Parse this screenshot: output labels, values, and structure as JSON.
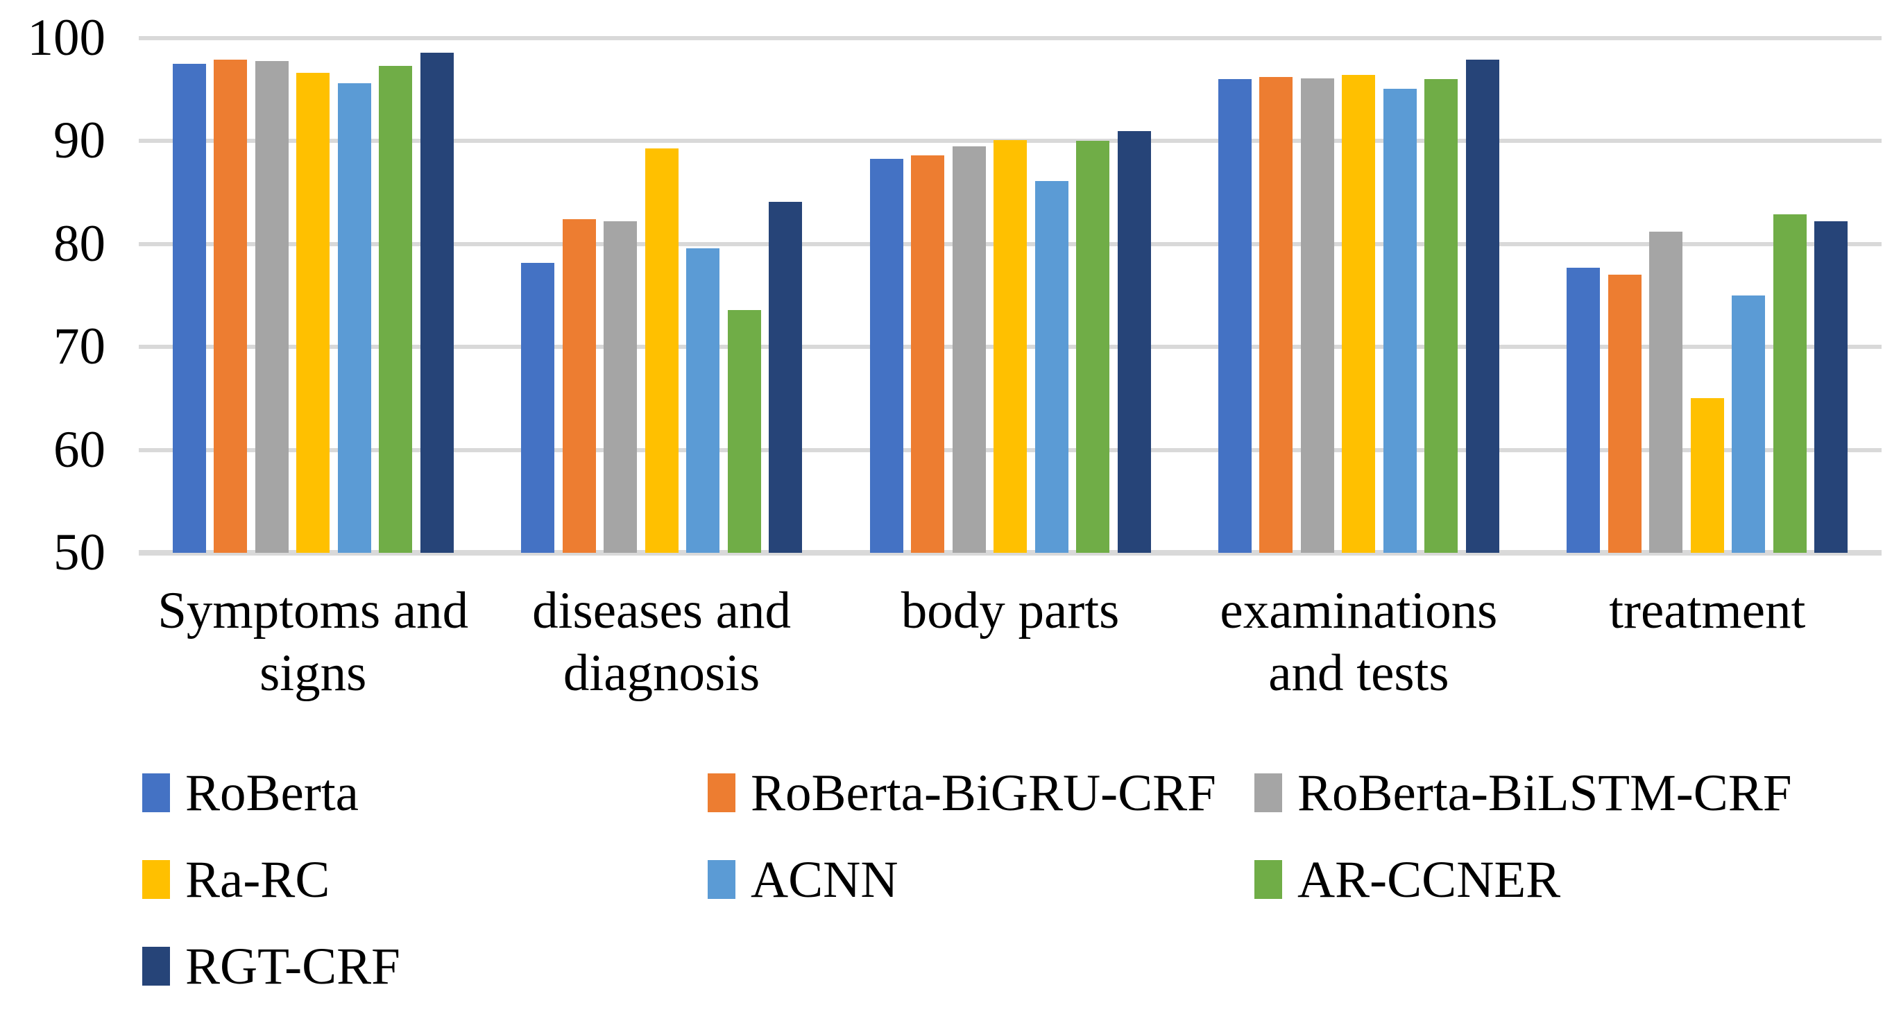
{
  "chart_data": {
    "type": "bar",
    "title": "",
    "xlabel": "",
    "ylabel": "",
    "categories": [
      "Symptoms and signs",
      "diseases and diagnosis",
      "body parts",
      "examinations and tests",
      "treatment"
    ],
    "series": [
      {
        "name": "RoBerta",
        "color": "#4472C4",
        "values": [
          97.5,
          78.2,
          88.3,
          96.0,
          77.7
        ]
      },
      {
        "name": "RoBerta-BiGRU-CRF",
        "color": "#ED7D31",
        "values": [
          97.9,
          82.4,
          88.6,
          96.2,
          77.0
        ]
      },
      {
        "name": "RoBerta-BiLSTM-CRF",
        "color": "#A5A5A5",
        "values": [
          97.8,
          82.2,
          89.5,
          96.1,
          81.2
        ]
      },
      {
        "name": "Ra-RC",
        "color": "#FFC000",
        "values": [
          96.6,
          89.3,
          90.1,
          96.4,
          65.0
        ]
      },
      {
        "name": "ACNN",
        "color": "#5B9BD5",
        "values": [
          95.6,
          79.6,
          86.1,
          95.1,
          75.0
        ]
      },
      {
        "name": "AR-CCNER",
        "color": "#70AD47",
        "values": [
          97.3,
          73.6,
          90.0,
          96.0,
          82.9
        ]
      },
      {
        "name": "RGT-CRF",
        "color": "#264478",
        "values": [
          98.6,
          84.1,
          91.0,
          97.9,
          82.2
        ]
      }
    ],
    "ylim": [
      50,
      100
    ],
    "yticks": [
      50,
      60,
      70,
      80,
      90,
      100
    ],
    "grid": "horizontal",
    "legend_position": "bottom-left, 3 columns"
  },
  "style": {
    "grid_color": "#D9D9D9",
    "text_color": "#000000",
    "background": "#FFFFFF"
  }
}
